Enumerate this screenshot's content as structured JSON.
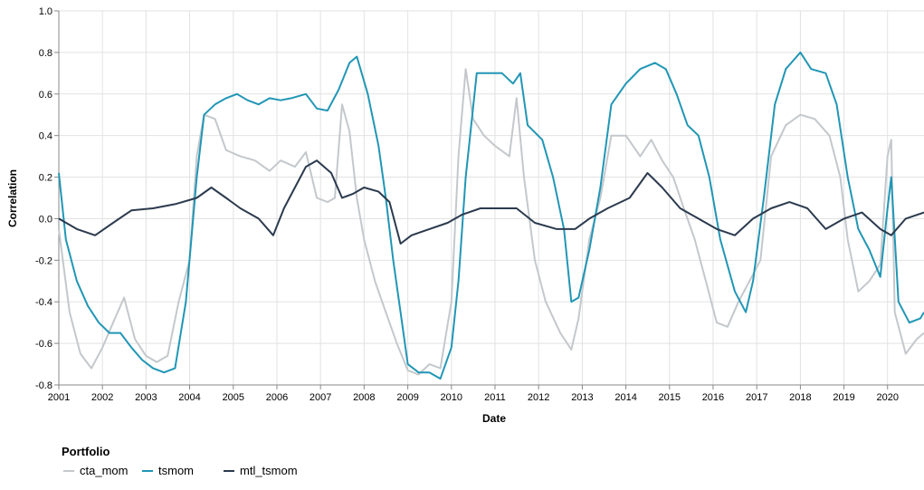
{
  "chart_data": {
    "type": "line",
    "xlabel": "Date",
    "ylabel": "Correlation",
    "xlim": [
      "2001-01-01",
      "2020-11-01"
    ],
    "ylim": [
      -0.8,
      1.0
    ],
    "x_ticks": [
      "2001",
      "2002",
      "2003",
      "2004",
      "2005",
      "2006",
      "2007",
      "2008",
      "2009",
      "2010",
      "2011",
      "2012",
      "2013",
      "2014",
      "2015",
      "2016",
      "2017",
      "2018",
      "2019",
      "2020"
    ],
    "y_ticks": [
      -0.8,
      -0.6,
      -0.4,
      -0.2,
      0.0,
      0.2,
      0.4,
      0.6,
      0.8,
      1.0
    ],
    "grid": true,
    "legend": {
      "title": "Portfolio",
      "placement": "bottom-left"
    },
    "series": [
      {
        "name": "cta_mom",
        "color": "#c4c8cc",
        "points": [
          [
            "2001-01",
            -0.05
          ],
          [
            "2001-04",
            -0.45
          ],
          [
            "2001-07",
            -0.65
          ],
          [
            "2001-10",
            -0.72
          ],
          [
            "2002-01",
            -0.62
          ],
          [
            "2002-04",
            -0.5
          ],
          [
            "2002-07",
            -0.38
          ],
          [
            "2002-10",
            -0.58
          ],
          [
            "2003-01",
            -0.66
          ],
          [
            "2003-04",
            -0.69
          ],
          [
            "2003-07",
            -0.66
          ],
          [
            "2003-10",
            -0.4
          ],
          [
            "2004-01",
            -0.2
          ],
          [
            "2004-03",
            0.3
          ],
          [
            "2004-05",
            0.5
          ],
          [
            "2004-08",
            0.48
          ],
          [
            "2004-11",
            0.33
          ],
          [
            "2005-03",
            0.3
          ],
          [
            "2005-07",
            0.28
          ],
          [
            "2005-11",
            0.23
          ],
          [
            "2006-02",
            0.28
          ],
          [
            "2006-06",
            0.25
          ],
          [
            "2006-09",
            0.32
          ],
          [
            "2006-12",
            0.1
          ],
          [
            "2007-03",
            0.08
          ],
          [
            "2007-05",
            0.1
          ],
          [
            "2007-07",
            0.55
          ],
          [
            "2007-09",
            0.42
          ],
          [
            "2007-11",
            0.1
          ],
          [
            "2008-01",
            -0.1
          ],
          [
            "2008-04",
            -0.3
          ],
          [
            "2008-07",
            -0.45
          ],
          [
            "2008-10",
            -0.6
          ],
          [
            "2009-01",
            -0.73
          ],
          [
            "2009-04",
            -0.75
          ],
          [
            "2009-07",
            -0.7
          ],
          [
            "2009-10",
            -0.72
          ],
          [
            "2010-01",
            -0.4
          ],
          [
            "2010-03",
            0.3
          ],
          [
            "2010-05",
            0.72
          ],
          [
            "2010-07",
            0.48
          ],
          [
            "2010-10",
            0.4
          ],
          [
            "2011-01",
            0.35
          ],
          [
            "2011-05",
            0.3
          ],
          [
            "2011-07",
            0.58
          ],
          [
            "2011-09",
            0.2
          ],
          [
            "2011-12",
            -0.2
          ],
          [
            "2012-03",
            -0.4
          ],
          [
            "2012-07",
            -0.55
          ],
          [
            "2012-10",
            -0.63
          ],
          [
            "2012-12",
            -0.48
          ],
          [
            "2013-03",
            -0.1
          ],
          [
            "2013-06",
            0.1
          ],
          [
            "2013-09",
            0.4
          ],
          [
            "2014-01",
            0.4
          ],
          [
            "2014-05",
            0.3
          ],
          [
            "2014-08",
            0.38
          ],
          [
            "2014-11",
            0.28
          ],
          [
            "2015-02",
            0.2
          ],
          [
            "2015-05",
            0.05
          ],
          [
            "2015-08",
            -0.1
          ],
          [
            "2015-11",
            -0.3
          ],
          [
            "2016-02",
            -0.5
          ],
          [
            "2016-05",
            -0.52
          ],
          [
            "2016-08",
            -0.4
          ],
          [
            "2016-11",
            -0.3
          ],
          [
            "2017-02",
            -0.2
          ],
          [
            "2017-05",
            0.3
          ],
          [
            "2017-09",
            0.45
          ],
          [
            "2018-01",
            0.5
          ],
          [
            "2018-05",
            0.48
          ],
          [
            "2018-09",
            0.4
          ],
          [
            "2018-12",
            0.2
          ],
          [
            "2019-02",
            -0.1
          ],
          [
            "2019-05",
            -0.35
          ],
          [
            "2019-08",
            -0.3
          ],
          [
            "2019-11",
            -0.22
          ],
          [
            "2020-01",
            0.3
          ],
          [
            "2020-02",
            0.38
          ],
          [
            "2020-03",
            -0.45
          ],
          [
            "2020-06",
            -0.65
          ],
          [
            "2020-09",
            -0.58
          ],
          [
            "2020-11",
            -0.55
          ]
        ]
      },
      {
        "name": "tsmom",
        "color": "#2196b5",
        "points": [
          [
            "2001-01",
            0.22
          ],
          [
            "2001-03",
            -0.1
          ],
          [
            "2001-06",
            -0.3
          ],
          [
            "2001-09",
            -0.42
          ],
          [
            "2001-12",
            -0.5
          ],
          [
            "2002-03",
            -0.55
          ],
          [
            "2002-06",
            -0.55
          ],
          [
            "2002-09",
            -0.62
          ],
          [
            "2002-12",
            -0.68
          ],
          [
            "2003-03",
            -0.72
          ],
          [
            "2003-06",
            -0.74
          ],
          [
            "2003-09",
            -0.72
          ],
          [
            "2003-12",
            -0.4
          ],
          [
            "2004-03",
            0.2
          ],
          [
            "2004-05",
            0.5
          ],
          [
            "2004-08",
            0.55
          ],
          [
            "2004-11",
            0.58
          ],
          [
            "2005-02",
            0.6
          ],
          [
            "2005-05",
            0.57
          ],
          [
            "2005-08",
            0.55
          ],
          [
            "2005-11",
            0.58
          ],
          [
            "2006-02",
            0.57
          ],
          [
            "2006-05",
            0.58
          ],
          [
            "2006-09",
            0.6
          ],
          [
            "2006-12",
            0.53
          ],
          [
            "2007-03",
            0.52
          ],
          [
            "2007-06",
            0.62
          ],
          [
            "2007-09",
            0.75
          ],
          [
            "2007-11",
            0.78
          ],
          [
            "2008-02",
            0.6
          ],
          [
            "2008-05",
            0.35
          ],
          [
            "2008-07",
            0.1
          ],
          [
            "2008-09",
            -0.2
          ],
          [
            "2008-11",
            -0.45
          ],
          [
            "2009-01",
            -0.7
          ],
          [
            "2009-04",
            -0.74
          ],
          [
            "2009-07",
            -0.74
          ],
          [
            "2009-10",
            -0.77
          ],
          [
            "2010-01",
            -0.62
          ],
          [
            "2010-03",
            -0.3
          ],
          [
            "2010-05",
            0.2
          ],
          [
            "2010-08",
            0.7
          ],
          [
            "2010-11",
            0.7
          ],
          [
            "2011-03",
            0.7
          ],
          [
            "2011-06",
            0.65
          ],
          [
            "2011-08",
            0.7
          ],
          [
            "2011-10",
            0.45
          ],
          [
            "2012-02",
            0.38
          ],
          [
            "2012-05",
            0.2
          ],
          [
            "2012-08",
            -0.05
          ],
          [
            "2012-10",
            -0.4
          ],
          [
            "2012-12",
            -0.38
          ],
          [
            "2013-03",
            -0.15
          ],
          [
            "2013-06",
            0.15
          ],
          [
            "2013-09",
            0.55
          ],
          [
            "2014-01",
            0.65
          ],
          [
            "2014-05",
            0.72
          ],
          [
            "2014-09",
            0.75
          ],
          [
            "2014-12",
            0.72
          ],
          [
            "2015-03",
            0.6
          ],
          [
            "2015-06",
            0.45
          ],
          [
            "2015-09",
            0.4
          ],
          [
            "2015-12",
            0.2
          ],
          [
            "2016-03",
            -0.1
          ],
          [
            "2016-07",
            -0.35
          ],
          [
            "2016-10",
            -0.45
          ],
          [
            "2016-12",
            -0.3
          ],
          [
            "2017-03",
            0.1
          ],
          [
            "2017-06",
            0.55
          ],
          [
            "2017-09",
            0.72
          ],
          [
            "2018-01",
            0.8
          ],
          [
            "2018-04",
            0.72
          ],
          [
            "2018-08",
            0.7
          ],
          [
            "2018-11",
            0.55
          ],
          [
            "2019-02",
            0.2
          ],
          [
            "2019-05",
            -0.05
          ],
          [
            "2019-08",
            -0.15
          ],
          [
            "2019-11",
            -0.28
          ],
          [
            "2020-01",
            0.05
          ],
          [
            "2020-02",
            0.2
          ],
          [
            "2020-04",
            -0.4
          ],
          [
            "2020-07",
            -0.5
          ],
          [
            "2020-10",
            -0.48
          ],
          [
            "2020-11",
            -0.45
          ]
        ]
      },
      {
        "name": "mtl_tsmom",
        "color": "#2b3a4e",
        "points": [
          [
            "2001-01",
            0.0
          ],
          [
            "2001-06",
            -0.05
          ],
          [
            "2001-11",
            -0.08
          ],
          [
            "2002-04",
            -0.02
          ],
          [
            "2002-09",
            0.04
          ],
          [
            "2003-03",
            0.05
          ],
          [
            "2003-09",
            0.07
          ],
          [
            "2004-03",
            0.1
          ],
          [
            "2004-07",
            0.15
          ],
          [
            "2004-11",
            0.1
          ],
          [
            "2005-03",
            0.05
          ],
          [
            "2005-08",
            0.0
          ],
          [
            "2005-12",
            -0.08
          ],
          [
            "2006-03",
            0.05
          ],
          [
            "2006-06",
            0.15
          ],
          [
            "2006-09",
            0.25
          ],
          [
            "2006-12",
            0.28
          ],
          [
            "2007-04",
            0.22
          ],
          [
            "2007-07",
            0.1
          ],
          [
            "2007-10",
            0.12
          ],
          [
            "2008-01",
            0.15
          ],
          [
            "2008-05",
            0.13
          ],
          [
            "2008-08",
            0.08
          ],
          [
            "2008-11",
            -0.12
          ],
          [
            "2009-02",
            -0.08
          ],
          [
            "2009-07",
            -0.05
          ],
          [
            "2009-12",
            -0.02
          ],
          [
            "2010-04",
            0.02
          ],
          [
            "2010-09",
            0.05
          ],
          [
            "2011-02",
            0.05
          ],
          [
            "2011-07",
            0.05
          ],
          [
            "2011-12",
            -0.02
          ],
          [
            "2012-06",
            -0.05
          ],
          [
            "2012-11",
            -0.05
          ],
          [
            "2013-03",
            0.0
          ],
          [
            "2013-08",
            0.05
          ],
          [
            "2014-02",
            0.1
          ],
          [
            "2014-07",
            0.22
          ],
          [
            "2014-11",
            0.15
          ],
          [
            "2015-04",
            0.05
          ],
          [
            "2015-09",
            0.0
          ],
          [
            "2016-02",
            -0.05
          ],
          [
            "2016-07",
            -0.08
          ],
          [
            "2016-12",
            0.0
          ],
          [
            "2017-05",
            0.05
          ],
          [
            "2017-10",
            0.08
          ],
          [
            "2018-03",
            0.05
          ],
          [
            "2018-08",
            -0.05
          ],
          [
            "2019-01",
            0.0
          ],
          [
            "2019-06",
            0.03
          ],
          [
            "2019-11",
            -0.05
          ],
          [
            "2020-02",
            -0.08
          ],
          [
            "2020-06",
            0.0
          ],
          [
            "2020-11",
            0.03
          ]
        ]
      }
    ]
  }
}
